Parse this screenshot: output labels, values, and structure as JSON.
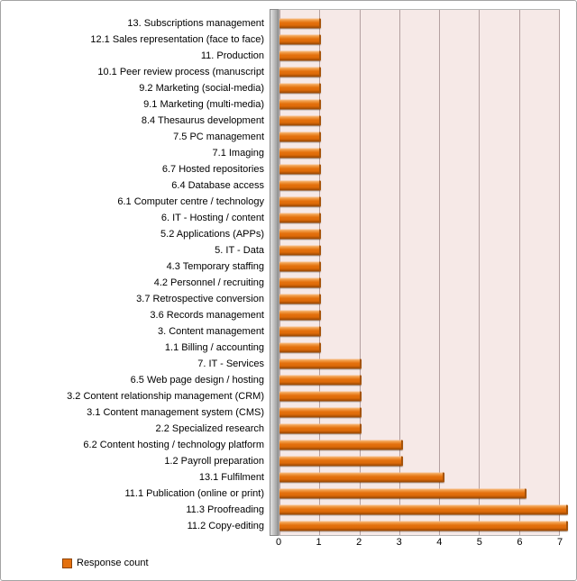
{
  "chart_data": {
    "type": "bar",
    "orientation": "horizontal",
    "title": "",
    "xlabel": "",
    "ylabel": "",
    "xlim": [
      0,
      7
    ],
    "xticks": [
      0,
      1,
      2,
      3,
      4,
      5,
      6,
      7
    ],
    "grid": true,
    "legend": {
      "label": "Response count",
      "position": "bottom-left"
    },
    "series_name": "Response count",
    "categories": [
      "13. Subscriptions management",
      "12.1 Sales representation (face to face)",
      "11. Production",
      "10.1 Peer review process (manuscript",
      "9.2 Marketing (social-media)",
      "9.1 Marketing (multi-media)",
      "8.4 Thesaurus development",
      "7.5 PC management",
      "7.1 Imaging",
      "6.7 Hosted repositories",
      "6.4 Database access",
      "6.1 Computer centre / technology",
      "6. IT - Hosting / content",
      "5.2 Applications (APPs)",
      "5. IT - Data",
      "4.3 Temporary staffing",
      "4.2 Personnel / recruiting",
      "3.7 Retrospective conversion",
      "3.6 Records management",
      "3. Content management",
      "1.1 Billing / accounting",
      "7. IT - Services",
      "6.5 Web page design / hosting",
      "3.2 Content relationship management (CRM)",
      "3.1 Content management system (CMS)",
      "2.2 Specialized research",
      "6.2 Content hosting / technology platform",
      "1.2 Payroll preparation",
      "13.1 Fulfilment",
      "11.1 Publication (online or print)",
      "11.3 Proofreading",
      "11.2 Copy-editing"
    ],
    "values": [
      1,
      1,
      1,
      1,
      1,
      1,
      1,
      1,
      1,
      1,
      1,
      1,
      1,
      1,
      1,
      1,
      1,
      1,
      1,
      1,
      1,
      2,
      2,
      2,
      2,
      2,
      3,
      3,
      4,
      6,
      7,
      7
    ],
    "colors": {
      "bar": "#E4710E",
      "bar_highlight": "#F9C28E",
      "bar_shadow": "#8E4304",
      "plot_background": "#F6E9E7",
      "gridline": "#B4A0A0",
      "wall": "#BDBDBD"
    }
  }
}
